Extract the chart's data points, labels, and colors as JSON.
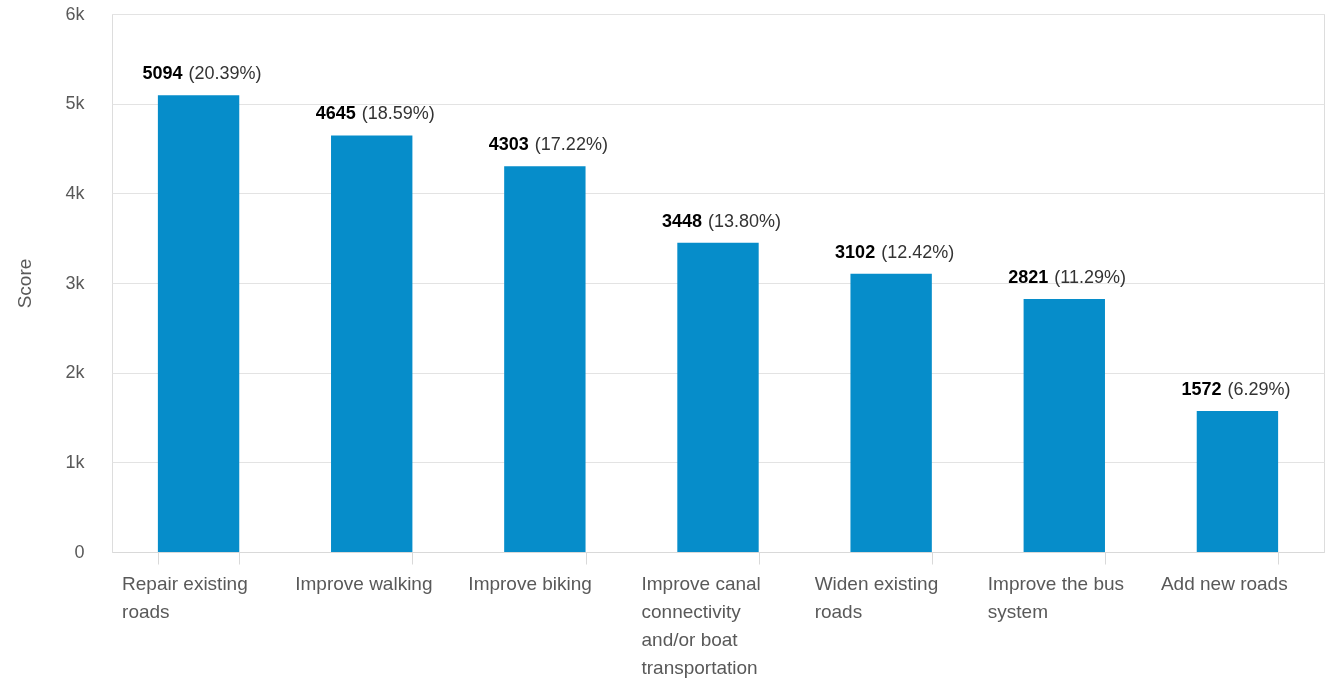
{
  "chart_data": {
    "type": "bar",
    "ylabel": "Score",
    "categories": [
      "Repair existing roads",
      "Improve walking",
      "Improve biking",
      "Improve canal connectivity and/or boat transportation",
      "Widen existing roads",
      "Improve the bus system",
      "Add new roads"
    ],
    "values": [
      5094,
      4645,
      4303,
      3448,
      3102,
      2821,
      1572
    ],
    "value_labels": [
      "5094 (20.39%)",
      "4645 (18.59%)",
      "4303 (17.22%)",
      "3448 (13.80%)",
      "3102 (12.42%)",
      "2821 (11.29%)",
      "1572 (6.29%)"
    ],
    "color": "#068dca",
    "ylim": [
      0,
      6000
    ],
    "yticks": [
      {
        "value": 0,
        "label": "0"
      },
      {
        "value": 1000,
        "label": "1k"
      },
      {
        "value": 2000,
        "label": "2k"
      },
      {
        "value": 3000,
        "label": "3k"
      },
      {
        "value": 4000,
        "label": "4k"
      },
      {
        "value": 5000,
        "label": "5k"
      },
      {
        "value": 6000,
        "label": "6k"
      }
    ],
    "grid": "y"
  }
}
